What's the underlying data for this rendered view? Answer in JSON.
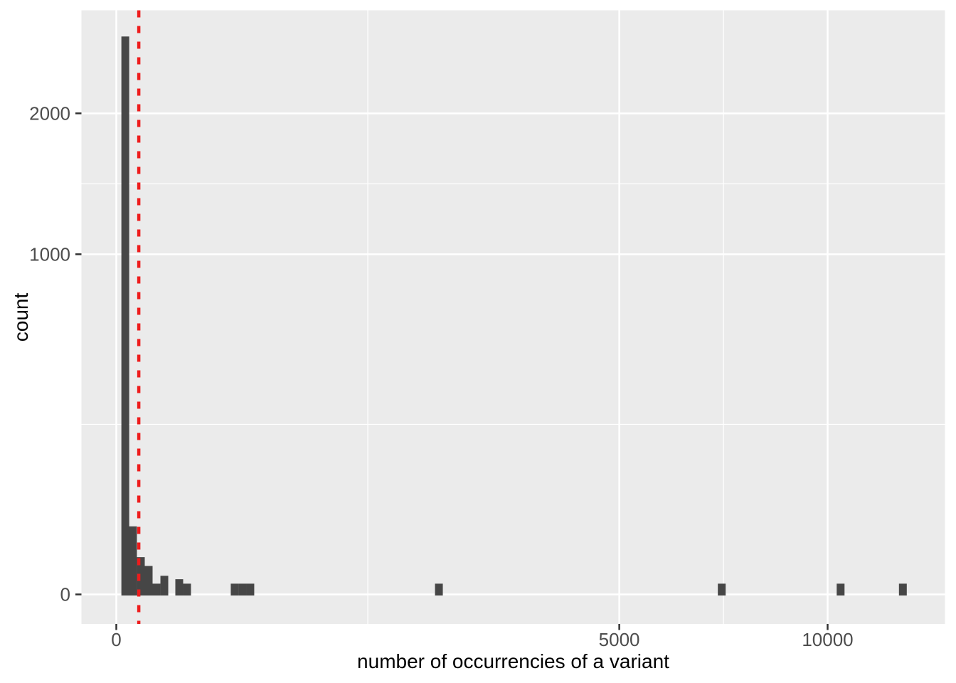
{
  "chart_data": {
    "type": "bar",
    "subtype": "histogram",
    "title": "",
    "xlabel": "number of occurrencies of a variant",
    "ylabel": "count",
    "x_scale": "sqrt",
    "y_scale": "sqrt",
    "grid": "on",
    "legend_position": "none",
    "x_range_approx": [
      0,
      12400
    ],
    "y_range_approx": [
      0,
      2700
    ],
    "x_ticks": [
      {
        "value": 0,
        "label": "0"
      },
      {
        "value": 5000,
        "label": "5000"
      },
      {
        "value": 10000,
        "label": "10000"
      }
    ],
    "y_ticks": [
      {
        "value": 0,
        "label": "0"
      },
      {
        "value": 1000,
        "label": "1000"
      },
      {
        "value": 2000,
        "label": "2000"
      }
    ],
    "x_minor_gridlines": [
      1250,
      7287
    ],
    "y_minor_gridlines": [
      250,
      1457
    ],
    "bin_width_sqrt_units": 1.1,
    "bins": [
      {
        "x": 1.6,
        "count": 2690
      },
      {
        "x": 5.5,
        "count": 40
      },
      {
        "x": 11.9,
        "count": 12
      },
      {
        "x": 20.7,
        "count": 7
      },
      {
        "x": 31.9,
        "count": 1
      },
      {
        "x": 45.6,
        "count": 3
      },
      {
        "x": 78.3,
        "count": 2
      },
      {
        "x": 99,
        "count": 1
      },
      {
        "x": 277,
        "count": 1
      },
      {
        "x": 315,
        "count": 1
      },
      {
        "x": 355,
        "count": 1
      },
      {
        "x": 2057,
        "count": 1
      },
      {
        "x": 7245,
        "count": 1
      },
      {
        "x": 10369,
        "count": 1
      },
      {
        "x": 12228,
        "count": 1
      }
    ],
    "vline": {
      "x": 10,
      "style": "dashed",
      "color": "#EE1C1C"
    },
    "colors": {
      "figure_background": "#FFFFFF",
      "panel_background": "#EBEBEB",
      "gridline": "#FFFFFF",
      "bar_fill": "#464646",
      "vline": "#EE1C1C",
      "tick_mark": "#333333",
      "tick_label": "#4D4D4D",
      "axis_title": "#000000"
    }
  }
}
